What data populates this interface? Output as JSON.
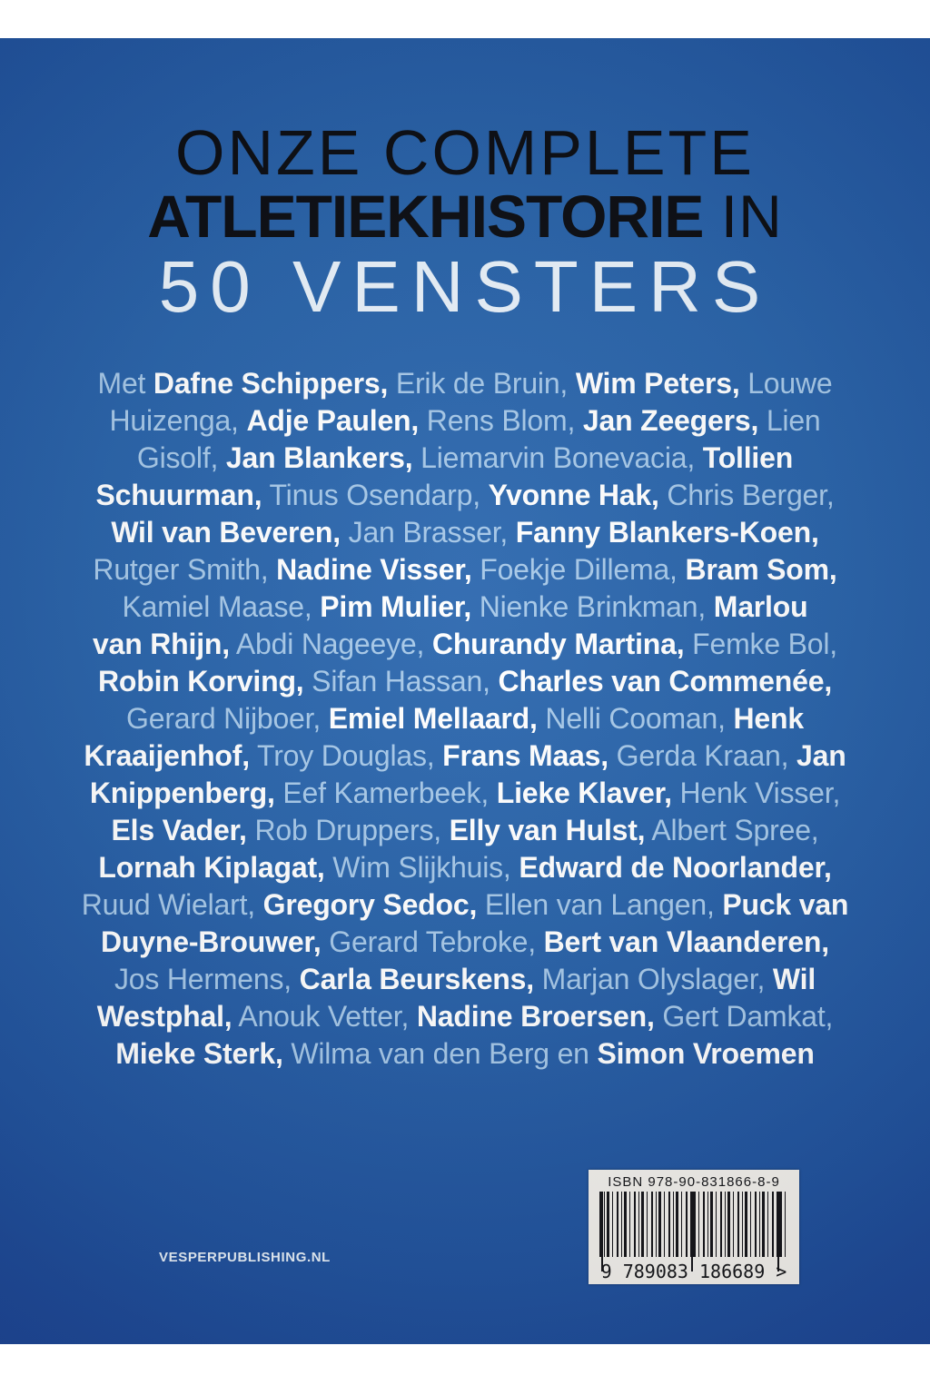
{
  "cover": {
    "title": {
      "line1": "ONZE COMPLETE",
      "line2_bold": "ATLETIEKHISTORIE",
      "line2_suffix": " IN",
      "line3": "50 VENSTERS"
    },
    "names": {
      "lines": [
        [
          {
            "t": "Met ",
            "b": false
          },
          {
            "t": "Dafne Schippers,",
            "b": true
          },
          {
            "t": " Erik de Bruin, ",
            "b": false
          },
          {
            "t": "Wim Peters,",
            "b": true
          },
          {
            "t": " Louwe",
            "b": false
          }
        ],
        [
          {
            "t": "Huizenga, ",
            "b": false
          },
          {
            "t": "Adje Paulen,",
            "b": true
          },
          {
            "t": " Rens Blom, ",
            "b": false
          },
          {
            "t": "Jan Zeegers,",
            "b": true
          },
          {
            "t": " Lien",
            "b": false
          }
        ],
        [
          {
            "t": "Gisolf, ",
            "b": false
          },
          {
            "t": "Jan Blankers,",
            "b": true
          },
          {
            "t": " Liemarvin Bonevacia, ",
            "b": false
          },
          {
            "t": "Tollien",
            "b": true
          }
        ],
        [
          {
            "t": "Schuurman,",
            "b": true
          },
          {
            "t": " Tinus Osendarp, ",
            "b": false
          },
          {
            "t": "Yvonne Hak,",
            "b": true
          },
          {
            "t": " Chris Berger,",
            "b": false
          }
        ],
        [
          {
            "t": "Wil van Beveren,",
            "b": true
          },
          {
            "t": " Jan Brasser, ",
            "b": false
          },
          {
            "t": "Fanny Blankers-Koen,",
            "b": true
          }
        ],
        [
          {
            "t": "Rutger Smith, ",
            "b": false
          },
          {
            "t": "Nadine Visser,",
            "b": true
          },
          {
            "t": " Foekje Dillema, ",
            "b": false
          },
          {
            "t": "Bram Som,",
            "b": true
          }
        ],
        [
          {
            "t": "Kamiel Maase, ",
            "b": false
          },
          {
            "t": "Pim Mulier,",
            "b": true
          },
          {
            "t": " Nienke Brinkman, ",
            "b": false
          },
          {
            "t": "Marlou",
            "b": true
          }
        ],
        [
          {
            "t": "van Rhijn,",
            "b": true
          },
          {
            "t": " Abdi Nageeye, ",
            "b": false
          },
          {
            "t": "Churandy Martina,",
            "b": true
          },
          {
            "t": " Femke Bol,",
            "b": false
          }
        ],
        [
          {
            "t": "Robin Korving,",
            "b": true
          },
          {
            "t": " Sifan Hassan, ",
            "b": false
          },
          {
            "t": "Charles van Commenée,",
            "b": true
          }
        ],
        [
          {
            "t": "Gerard Nijboer, ",
            "b": false
          },
          {
            "t": "Emiel Mellaard,",
            "b": true
          },
          {
            "t": " Nelli Cooman, ",
            "b": false
          },
          {
            "t": "Henk",
            "b": true
          }
        ],
        [
          {
            "t": "Kraaijenhof,",
            "b": true
          },
          {
            "t": " Troy Douglas, ",
            "b": false
          },
          {
            "t": "Frans Maas,",
            "b": true
          },
          {
            "t": " Gerda Kraan, ",
            "b": false
          },
          {
            "t": "Jan",
            "b": true
          }
        ],
        [
          {
            "t": "Knippenberg,",
            "b": true
          },
          {
            "t": " Eef Kamerbeek, ",
            "b": false
          },
          {
            "t": "Lieke Klaver,",
            "b": true
          },
          {
            "t": " Henk Visser,",
            "b": false
          }
        ],
        [
          {
            "t": "Els Vader,",
            "b": true
          },
          {
            "t": " Rob Druppers, ",
            "b": false
          },
          {
            "t": "Elly van Hulst,",
            "b": true
          },
          {
            "t": " Albert Spree,",
            "b": false
          }
        ],
        [
          {
            "t": "Lornah Kiplagat,",
            "b": true
          },
          {
            "t": " Wim Slijkhuis, ",
            "b": false
          },
          {
            "t": "Edward de Noorlander,",
            "b": true
          }
        ],
        [
          {
            "t": "Ruud Wielart, ",
            "b": false
          },
          {
            "t": "Gregory Sedoc,",
            "b": true
          },
          {
            "t": " Ellen van Langen, ",
            "b": false
          },
          {
            "t": "Puck van",
            "b": true
          }
        ],
        [
          {
            "t": "Duyne-Brouwer,",
            "b": true
          },
          {
            "t": " Gerard Tebroke, ",
            "b": false
          },
          {
            "t": "Bert van Vlaanderen,",
            "b": true
          }
        ],
        [
          {
            "t": "Jos Hermens, ",
            "b": false
          },
          {
            "t": "Carla Beurskens,",
            "b": true
          },
          {
            "t": " Marjan Olyslager, ",
            "b": false
          },
          {
            "t": "Wil",
            "b": true
          }
        ],
        [
          {
            "t": "Westphal,",
            "b": true
          },
          {
            "t": " Anouk Vetter, ",
            "b": false
          },
          {
            "t": "Nadine Broersen,",
            "b": true
          },
          {
            "t": " Gert Damkat,",
            "b": false
          }
        ],
        [
          {
            "t": "Mieke Sterk,",
            "b": true
          },
          {
            "t": " Wilma van den Berg en ",
            "b": false
          },
          {
            "t": "Simon Vroemen",
            "b": true
          }
        ]
      ]
    },
    "publisher": "VESPERPUBLISHING.NL",
    "barcode": {
      "isbn_label": "ISBN 978-90-831866-8-9",
      "number": "9 789083 186689 >"
    },
    "colors": {
      "cover_center": "#2c68af",
      "cover_edge": "#1d4293",
      "title_dark": "#0a0c12",
      "title_light": "#e9f2fb",
      "names_regular": "#a6c8e8",
      "names_bold": "#ffffff"
    }
  }
}
